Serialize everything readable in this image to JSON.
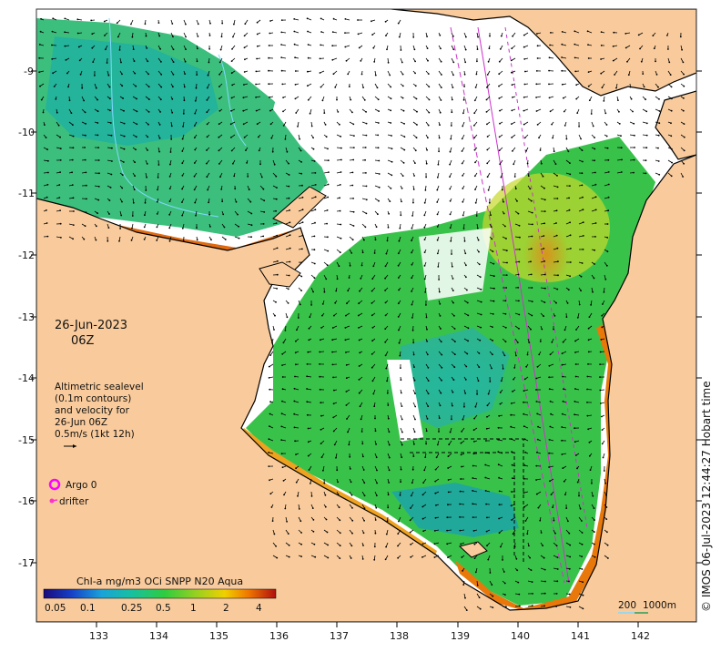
{
  "map": {
    "date": "26-Jun-2023",
    "hour": "06Z",
    "altimetry_note": [
      "Altimetric sealevel",
      "(0.1m contours)",
      "and velocity for",
      "26-Jun 06Z",
      "0.5m/s (1kt 12h)"
    ],
    "legend": {
      "argo": "Argo 0",
      "drifter": "drifter"
    },
    "colorbar": {
      "title": "Chl-a mg/m3 OCi SNPP N20 Aqua",
      "ticks": [
        "0.05",
        "0.1",
        "0.25",
        "0.5",
        "1",
        "2",
        "4"
      ]
    },
    "scale_bar": {
      "label_depth_a": "200",
      "label_depth_b": "1000m"
    },
    "credit": "© IMOS 06-Jul-2023 12:44:27 Hobart time",
    "lon_ticks": [
      "133",
      "134",
      "135",
      "136",
      "137",
      "138",
      "139",
      "140",
      "141",
      "142"
    ],
    "lat_ticks": [
      "-9",
      "-10",
      "-11",
      "-12",
      "-13",
      "-14",
      "-15",
      "-16",
      "-17"
    ],
    "colors": {
      "land": "#f9cb9c",
      "ocean_nodata": "#ffffff",
      "coast": "#000000",
      "argo": "#ff00ff",
      "altimetry_track": "#cc33cc",
      "depth_contour": "#7fd9ff"
    }
  }
}
